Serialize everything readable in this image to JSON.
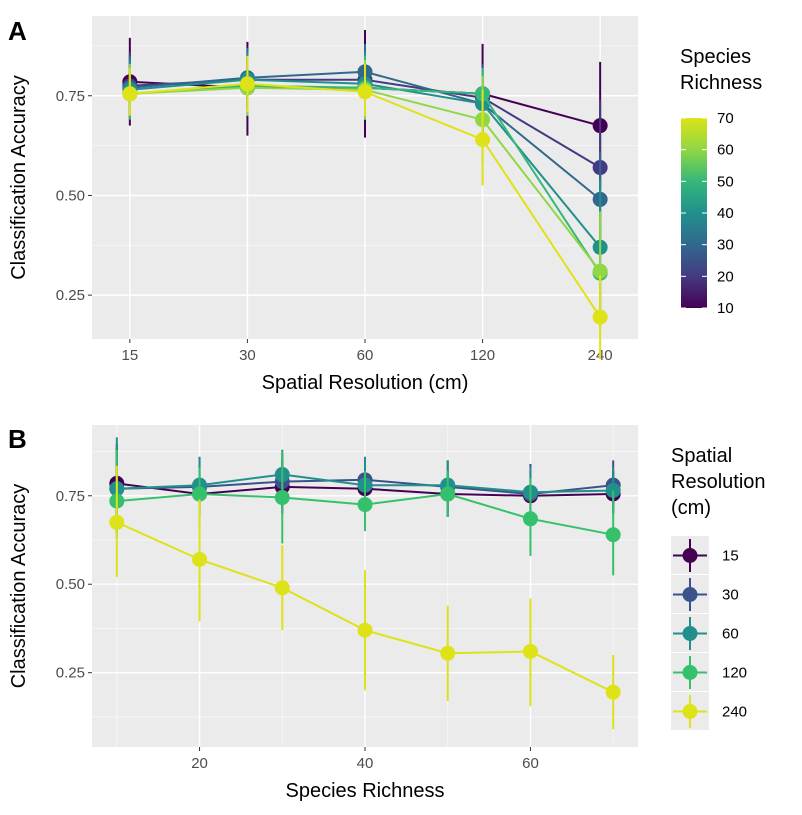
{
  "chart_data": [
    {
      "type": "line",
      "panel_label": "A",
      "xlabel": "Spatial Resolution (cm)",
      "ylabel": "Classification Accuracy",
      "x_scale": "log2",
      "x": [
        15,
        30,
        60,
        120,
        240
      ],
      "x_ticks": [
        "15",
        "30",
        "60",
        "120",
        "240"
      ],
      "xlim": [
        12,
        300
      ],
      "ylim": [
        0.14,
        0.95
      ],
      "y_ticks": [
        "0.25",
        "0.50",
        "0.75"
      ],
      "grid": true,
      "legend": {
        "title_lines": [
          "Species",
          "Richness"
        ],
        "type": "colorbar",
        "ticks": [
          "10",
          "20",
          "30",
          "40",
          "50",
          "60",
          "70"
        ],
        "range": [
          10,
          70
        ],
        "placement": "right"
      },
      "series": [
        {
          "key": 10,
          "color": "#440154",
          "values": [
            0.785,
            0.77,
            0.77,
            0.755,
            0.675
          ],
          "lo": [
            0.675,
            0.65,
            0.645,
            0.63,
            0.52
          ],
          "hi": [
            0.895,
            0.885,
            0.915,
            0.88,
            0.835
          ]
        },
        {
          "key": 20,
          "color": "#443a83",
          "values": [
            0.775,
            0.79,
            0.79,
            0.745,
            0.57
          ],
          "lo": [
            0.69,
            0.72,
            0.71,
            0.66,
            0.395
          ],
          "hi": [
            0.86,
            0.86,
            0.87,
            0.83,
            0.74
          ]
        },
        {
          "key": 30,
          "color": "#31688e",
          "values": [
            0.77,
            0.795,
            0.81,
            0.73,
            0.49
          ],
          "lo": [
            0.7,
            0.72,
            0.735,
            0.65,
            0.37
          ],
          "hi": [
            0.85,
            0.87,
            0.88,
            0.82,
            0.61
          ]
        },
        {
          "key": 40,
          "color": "#21908c",
          "values": [
            0.765,
            0.79,
            0.78,
            0.73,
            0.37
          ],
          "lo": [
            0.7,
            0.72,
            0.71,
            0.65,
            0.2
          ],
          "hi": [
            0.84,
            0.86,
            0.86,
            0.82,
            0.54
          ]
        },
        {
          "key": 50,
          "color": "#35b779",
          "values": [
            0.755,
            0.775,
            0.77,
            0.755,
            0.305
          ],
          "lo": [
            0.69,
            0.7,
            0.69,
            0.69,
            0.17
          ],
          "hi": [
            0.82,
            0.85,
            0.85,
            0.82,
            0.44
          ]
        },
        {
          "key": 60,
          "color": "#8fd744",
          "values": [
            0.755,
            0.77,
            0.765,
            0.69,
            0.31
          ],
          "lo": [
            0.7,
            0.7,
            0.69,
            0.58,
            0.155
          ],
          "hi": [
            0.83,
            0.84,
            0.84,
            0.8,
            0.46
          ]
        },
        {
          "key": 70,
          "color": "#dde318",
          "values": [
            0.755,
            0.78,
            0.76,
            0.64,
            0.195
          ],
          "lo": [
            0.7,
            0.71,
            0.7,
            0.525,
            0.09
          ],
          "hi": [
            0.82,
            0.85,
            0.83,
            0.765,
            0.3
          ]
        }
      ]
    },
    {
      "type": "line",
      "panel_label": "B",
      "xlabel": "Species Richness",
      "ylabel": "Classification Accuracy",
      "x": [
        10,
        20,
        30,
        40,
        50,
        60,
        70
      ],
      "x_ticks": [
        "20",
        "40",
        "60"
      ],
      "x_tick_values": [
        20,
        40,
        60
      ],
      "xlim": [
        7,
        73
      ],
      "ylim": [
        0.04,
        0.95
      ],
      "y_ticks": [
        "0.25",
        "0.50",
        "0.75"
      ],
      "grid": true,
      "legend": {
        "title_lines": [
          "Spatial",
          "Resolution",
          "(cm)"
        ],
        "type": "discrete",
        "placement": "right",
        "entries": [
          {
            "label": "15",
            "color": "#440154"
          },
          {
            "label": "30",
            "color": "#3b528b"
          },
          {
            "label": "60",
            "color": "#21908c"
          },
          {
            "label": "120",
            "color": "#35c16b"
          },
          {
            "label": "240",
            "color": "#dde318"
          }
        ]
      },
      "series": [
        {
          "name": "15",
          "color": "#440154",
          "values": [
            0.785,
            0.755,
            0.775,
            0.77,
            0.755,
            0.75,
            0.755
          ],
          "lo": [
            0.675,
            0.69,
            0.7,
            0.7,
            0.69,
            0.7,
            0.7
          ],
          "hi": [
            0.895,
            0.82,
            0.85,
            0.84,
            0.82,
            0.82,
            0.82
          ]
        },
        {
          "name": "30",
          "color": "#3b528b",
          "values": [
            0.77,
            0.775,
            0.79,
            0.795,
            0.775,
            0.755,
            0.78
          ],
          "lo": [
            0.65,
            0.7,
            0.72,
            0.72,
            0.7,
            0.7,
            0.71
          ],
          "hi": [
            0.885,
            0.86,
            0.87,
            0.86,
            0.85,
            0.84,
            0.85
          ]
        },
        {
          "name": "60",
          "color": "#21908c",
          "values": [
            0.77,
            0.78,
            0.81,
            0.78,
            0.78,
            0.76,
            0.765
          ],
          "lo": [
            0.645,
            0.71,
            0.735,
            0.71,
            0.69,
            0.69,
            0.7
          ],
          "hi": [
            0.915,
            0.86,
            0.88,
            0.86,
            0.85,
            0.83,
            0.83
          ]
        },
        {
          "name": "120",
          "color": "#35c16b",
          "values": [
            0.735,
            0.755,
            0.745,
            0.725,
            0.755,
            0.685,
            0.64
          ],
          "lo": [
            0.63,
            0.66,
            0.615,
            0.65,
            0.69,
            0.58,
            0.525
          ],
          "hi": [
            0.88,
            0.83,
            0.875,
            0.82,
            0.82,
            0.8,
            0.765
          ]
        },
        {
          "name": "240",
          "color": "#dde318",
          "values": [
            0.675,
            0.57,
            0.49,
            0.37,
            0.305,
            0.31,
            0.195
          ],
          "lo": [
            0.52,
            0.395,
            0.37,
            0.2,
            0.17,
            0.155,
            0.09
          ],
          "hi": [
            0.835,
            0.74,
            0.61,
            0.54,
            0.44,
            0.46,
            0.3
          ]
        }
      ]
    }
  ]
}
